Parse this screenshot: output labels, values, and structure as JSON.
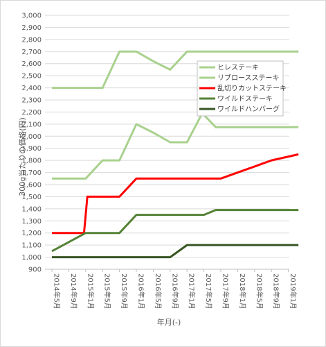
{
  "chart_data": {
    "type": "line",
    "title": "",
    "xlabel": "年月(-)",
    "ylabel": "300g当たりの価格(円)",
    "ylim": [
      900,
      3000
    ],
    "ystep": 100,
    "yticks": [
      "900",
      "1,000",
      "1,100",
      "1,200",
      "1,300",
      "1,400",
      "1,500",
      "1,600",
      "1,700",
      "1,800",
      "1,900",
      "2,000",
      "2,100",
      "2,200",
      "2,300",
      "2,400",
      "2,500",
      "2,600",
      "2,700",
      "2,800",
      "2,900",
      "3,000"
    ],
    "grid": true,
    "legend_position": "right",
    "categories": [
      "2014年5月",
      "2014年9月",
      "2015年1月",
      "2015年5月",
      "2015年9月",
      "2016年1月",
      "2016年5月",
      "2016年9月",
      "2017年1月",
      "2017年5月",
      "2017年9月",
      "2018年1月",
      "2018年5月",
      "2018年9月",
      "2019年1月"
    ],
    "series": [
      {
        "name": "ヒレステーキ",
        "color": "#a9d18e",
        "values": [
          2400,
          2400,
          2400,
          2400,
          2700,
          2700,
          2620,
          2550,
          2700,
          2700,
          2700,
          2700,
          2700,
          2700,
          2700
        ],
        "x": [
          0,
          1,
          2,
          3,
          4,
          5,
          6,
          7,
          8,
          9,
          10,
          11,
          12,
          13,
          14.6
        ]
      },
      {
        "name": "リブロースステーキ",
        "color": "#a9d18e",
        "values": [
          1650,
          1650,
          1650,
          1800,
          1800,
          2100,
          2030,
          1950,
          1950,
          2190,
          2075,
          2075,
          2075,
          2075,
          2075,
          2075
        ],
        "x": [
          0,
          1,
          2,
          3,
          4,
          5,
          6,
          7,
          8,
          8.9,
          9.7,
          11,
          12,
          13,
          14,
          14.6
        ]
      },
      {
        "name": "乱切りカットステーキ",
        "color": "#ff0000",
        "values": [
          1200,
          1200,
          1200,
          1500,
          1500,
          1500,
          1650,
          1650,
          1650,
          1650,
          1650,
          1650,
          1700,
          1750,
          1800,
          1850
        ],
        "x": [
          0,
          1,
          1.9,
          2.1,
          3,
          4,
          5,
          6,
          7,
          8,
          9,
          10,
          11,
          12,
          13,
          14.6
        ]
      },
      {
        "name": "ワイルドステーキ",
        "color": "#548235",
        "values": [
          1050,
          1200,
          1200,
          1200,
          1350,
          1350,
          1350,
          1350,
          1350,
          1390,
          1390,
          1390,
          1390,
          1390,
          1390
        ],
        "x": [
          0,
          2,
          3,
          4,
          5,
          6,
          7,
          8,
          9,
          9.7,
          11,
          12,
          13,
          14,
          14.6
        ]
      },
      {
        "name": "ワイルドハンバーグ",
        "color": "#375623",
        "values": [
          1000,
          1000,
          1000,
          1000,
          1000,
          1000,
          1000,
          1000,
          1100,
          1100,
          1100,
          1100,
          1100,
          1100,
          1100,
          1100
        ],
        "x": [
          0,
          1,
          2,
          3,
          4,
          5,
          6,
          7,
          8,
          9,
          10,
          11,
          12,
          13,
          14,
          14.6
        ]
      }
    ]
  }
}
